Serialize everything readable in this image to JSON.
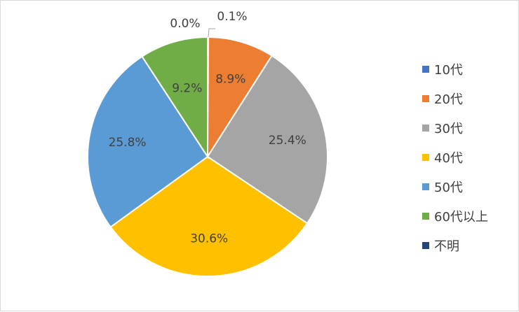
{
  "chart_data": {
    "type": "pie",
    "categories": [
      "10代",
      "20代",
      "30代",
      "40代",
      "50代",
      "60代以上",
      "不明"
    ],
    "values": [
      0.1,
      8.9,
      25.4,
      30.6,
      25.8,
      9.2,
      0.0
    ],
    "labels": [
      "0.1%",
      "8.9%",
      "25.4%",
      "30.6%",
      "25.8%",
      "9.2%",
      "0.0%"
    ],
    "colors": [
      "#4472c4",
      "#ed7d31",
      "#a5a5a5",
      "#ffc000",
      "#5b9bd5",
      "#70ad47",
      "#264478"
    ],
    "title": "",
    "legend_position": "right",
    "start_angle_deg": 0,
    "direction": "clockwise"
  }
}
